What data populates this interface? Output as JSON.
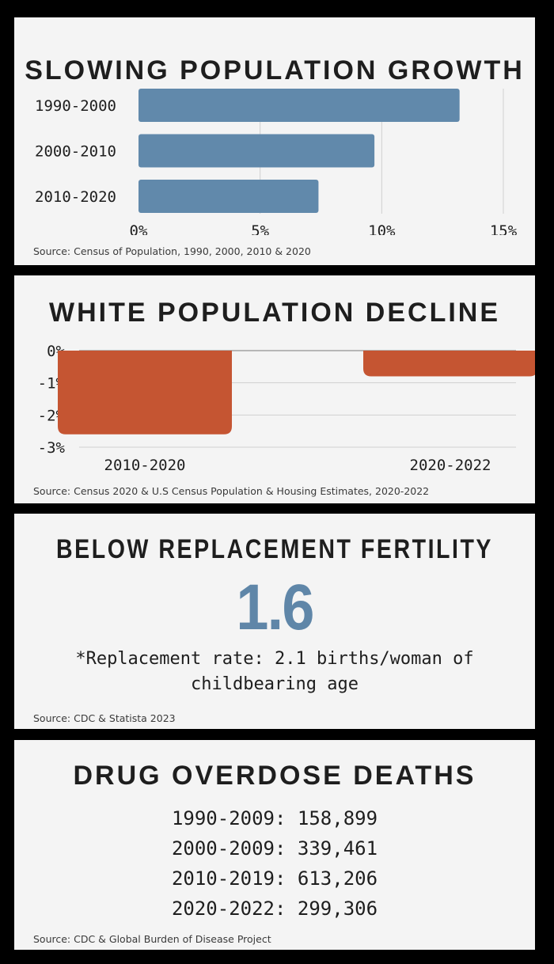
{
  "colors": {
    "blue": "#6189ab",
    "orange": "#c55532",
    "grid": "#cfcfcf",
    "text": "#1e1e1e"
  },
  "panels": {
    "growth": {
      "title": "SLOWING POPULATION GROWTH",
      "source": "Source: Census of Population, 1990, 2000, 2010 & 2020"
    },
    "decline": {
      "title": "WHITE POPULATION DECLINE",
      "source": "Source: Census 2020 & U.S Census Population & Housing Estimates, 2020-2022"
    },
    "fertility": {
      "title": "BELOW REPLACEMENT FERTILITY",
      "value": "1.6",
      "note": "*Replacement rate: 2.1 births/woman of childbearing age",
      "source": "Source: CDC & Statista 2023"
    },
    "overdose": {
      "title": "DRUG OVERDOSE DEATHS",
      "rows": [
        {
          "text": "1990-2009: 158,899"
        },
        {
          "text": "2000-2009: 339,461"
        },
        {
          "text": "2010-2019: 613,206"
        },
        {
          "text": "2020-2022: 299,306"
        }
      ],
      "source": "Source: CDC & Global Burden of Disease Project"
    }
  },
  "chart_data": [
    {
      "type": "bar",
      "orientation": "horizontal",
      "title": "SLOWING POPULATION GROWTH",
      "categories": [
        "1990-2000",
        "2000-2010",
        "2010-2020"
      ],
      "values": [
        13.2,
        9.7,
        7.4
      ],
      "xlim": [
        0,
        15
      ],
      "x_ticks": [
        0,
        5,
        10,
        15
      ],
      "x_tick_labels": [
        "0%",
        "5%",
        "10%",
        "15%"
      ],
      "grid": true
    },
    {
      "type": "bar",
      "orientation": "vertical",
      "title": "WHITE POPULATION DECLINE",
      "categories": [
        "2010-2020",
        "2020-2022"
      ],
      "values": [
        -2.6,
        -0.8
      ],
      "ylim": [
        -3,
        0
      ],
      "y_ticks": [
        0,
        -1,
        -2,
        -3
      ],
      "y_tick_labels": [
        "0%",
        "-1%",
        "-2%",
        "-3%"
      ],
      "grid": true
    }
  ]
}
